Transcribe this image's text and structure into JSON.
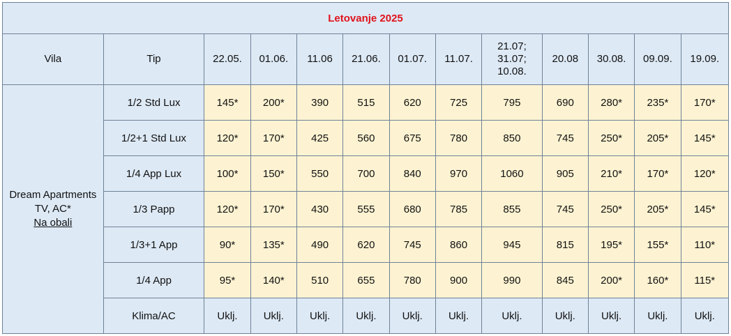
{
  "title": "Letovanje 2025",
  "headers": {
    "vila": "Vila",
    "tip": "Tip",
    "dates": [
      "22.05.",
      "01.06.",
      "11.06",
      "21.06.",
      "01.07.",
      "11.07.",
      "21.07;\n31.07;\n10.08.",
      "20.08",
      "30.08.",
      "09.09.",
      "19.09."
    ]
  },
  "villa": {
    "name": "Dream Apartments",
    "features": "TV, AC*",
    "location": "Na obali"
  },
  "rows": [
    {
      "tip": "1/2 Std Lux",
      "prices": [
        "145*",
        "200*",
        "390",
        "515",
        "620",
        "725",
        "795",
        "690",
        "280*",
        "235*",
        "170*"
      ]
    },
    {
      "tip": "1/2+1 Std Lux",
      "prices": [
        "120*",
        "170*",
        "425",
        "560",
        "675",
        "780",
        "850",
        "745",
        "250*",
        "205*",
        "145*"
      ]
    },
    {
      "tip": "1/4 App Lux",
      "prices": [
        "100*",
        "150*",
        "550",
        "700",
        "840",
        "970",
        "1060",
        "905",
        "210*",
        "170*",
        "120*"
      ]
    },
    {
      "tip": "1/3 Papp",
      "prices": [
        "120*",
        "170*",
        "430",
        "555",
        "680",
        "785",
        "855",
        "745",
        "250*",
        "205*",
        "145*"
      ]
    },
    {
      "tip": "1/3+1 App",
      "prices": [
        "90*",
        "135*",
        "490",
        "620",
        "745",
        "860",
        "945",
        "815",
        "195*",
        "155*",
        "110*"
      ]
    },
    {
      "tip": "1/4 App",
      "prices": [
        "95*",
        "140*",
        "510",
        "655",
        "780",
        "900",
        "990",
        "845",
        "200*",
        "160*",
        "115*"
      ]
    }
  ],
  "ac_row": {
    "tip": "Klima/AC",
    "values": [
      "Uklj.",
      "Uklj.",
      "Uklj.",
      "Uklj.",
      "Uklj.",
      "Uklj.",
      "Uklj.",
      "Uklj.",
      "Uklj.",
      "Uklj.",
      "Uklj."
    ]
  }
}
